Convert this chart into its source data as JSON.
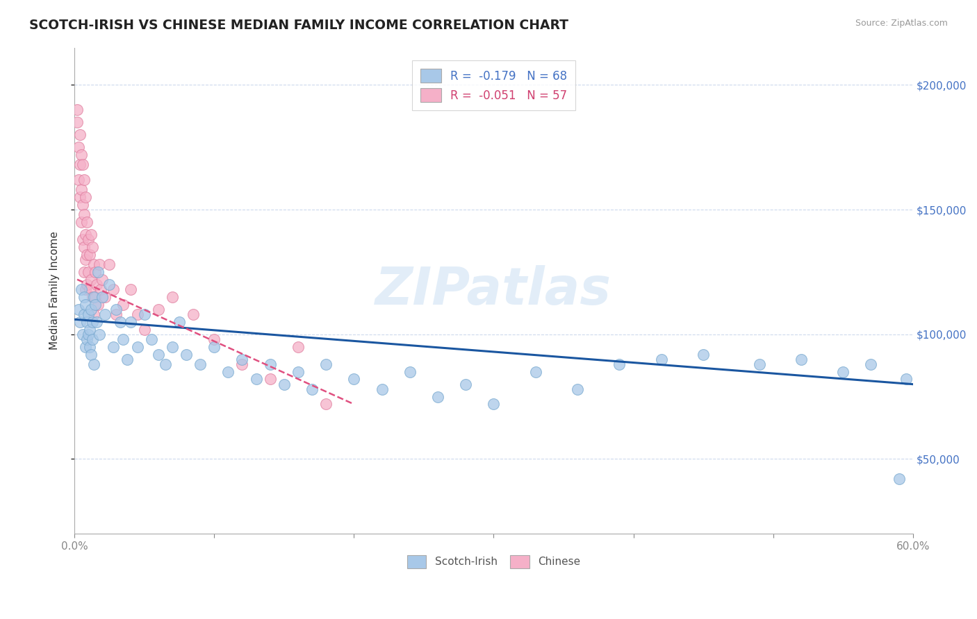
{
  "title": "SCOTCH-IRISH VS CHINESE MEDIAN FAMILY INCOME CORRELATION CHART",
  "source": "Source: ZipAtlas.com",
  "ylabel": "Median Family Income",
  "xlim": [
    0.0,
    0.6
  ],
  "ylim": [
    20000,
    215000
  ],
  "yticks": [
    50000,
    100000,
    150000,
    200000
  ],
  "yticklabels": [
    "$50,000",
    "$100,000",
    "$150,000",
    "$200,000"
  ],
  "scotch_irish_R": -0.179,
  "scotch_irish_N": 68,
  "chinese_R": -0.051,
  "chinese_N": 57,
  "scotch_irish_color": "#a8c8e8",
  "scotch_irish_edge_color": "#7aaad0",
  "scotch_irish_line_color": "#1a56a0",
  "chinese_color": "#f5b0c8",
  "chinese_edge_color": "#e080a0",
  "chinese_line_color": "#e05080",
  "watermark": "ZIPatlas",
  "scotch_irish_x": [
    0.003,
    0.004,
    0.005,
    0.006,
    0.007,
    0.007,
    0.008,
    0.008,
    0.009,
    0.009,
    0.01,
    0.01,
    0.011,
    0.011,
    0.012,
    0.012,
    0.013,
    0.013,
    0.014,
    0.014,
    0.015,
    0.016,
    0.017,
    0.018,
    0.02,
    0.022,
    0.025,
    0.028,
    0.03,
    0.033,
    0.035,
    0.038,
    0.04,
    0.045,
    0.05,
    0.055,
    0.06,
    0.065,
    0.07,
    0.075,
    0.08,
    0.09,
    0.1,
    0.11,
    0.12,
    0.13,
    0.14,
    0.15,
    0.16,
    0.17,
    0.18,
    0.2,
    0.22,
    0.24,
    0.26,
    0.28,
    0.3,
    0.33,
    0.36,
    0.39,
    0.42,
    0.45,
    0.49,
    0.52,
    0.55,
    0.57,
    0.59,
    0.595
  ],
  "scotch_irish_y": [
    110000,
    105000,
    118000,
    100000,
    115000,
    108000,
    112000,
    95000,
    105000,
    98000,
    100000,
    108000,
    102000,
    95000,
    110000,
    92000,
    105000,
    98000,
    115000,
    88000,
    112000,
    105000,
    125000,
    100000,
    115000,
    108000,
    120000,
    95000,
    110000,
    105000,
    98000,
    90000,
    105000,
    95000,
    108000,
    98000,
    92000,
    88000,
    95000,
    105000,
    92000,
    88000,
    95000,
    85000,
    90000,
    82000,
    88000,
    80000,
    85000,
    78000,
    88000,
    82000,
    78000,
    85000,
    75000,
    80000,
    72000,
    85000,
    78000,
    88000,
    90000,
    92000,
    88000,
    90000,
    85000,
    88000,
    42000,
    82000
  ],
  "chinese_x": [
    0.002,
    0.002,
    0.003,
    0.003,
    0.004,
    0.004,
    0.004,
    0.005,
    0.005,
    0.005,
    0.006,
    0.006,
    0.006,
    0.007,
    0.007,
    0.007,
    0.007,
    0.008,
    0.008,
    0.008,
    0.008,
    0.009,
    0.009,
    0.009,
    0.01,
    0.01,
    0.011,
    0.011,
    0.012,
    0.012,
    0.013,
    0.013,
    0.014,
    0.014,
    0.015,
    0.015,
    0.016,
    0.017,
    0.018,
    0.019,
    0.02,
    0.022,
    0.025,
    0.028,
    0.03,
    0.035,
    0.04,
    0.045,
    0.05,
    0.06,
    0.07,
    0.085,
    0.1,
    0.12,
    0.14,
    0.16,
    0.18
  ],
  "chinese_y": [
    185000,
    190000,
    175000,
    162000,
    180000,
    168000,
    155000,
    172000,
    158000,
    145000,
    168000,
    152000,
    138000,
    162000,
    148000,
    135000,
    125000,
    155000,
    140000,
    130000,
    118000,
    145000,
    132000,
    120000,
    138000,
    125000,
    132000,
    118000,
    140000,
    122000,
    135000,
    115000,
    128000,
    108000,
    125000,
    115000,
    120000,
    112000,
    128000,
    118000,
    122000,
    115000,
    128000,
    118000,
    108000,
    112000,
    118000,
    108000,
    102000,
    110000,
    115000,
    108000,
    98000,
    88000,
    82000,
    95000,
    72000
  ]
}
